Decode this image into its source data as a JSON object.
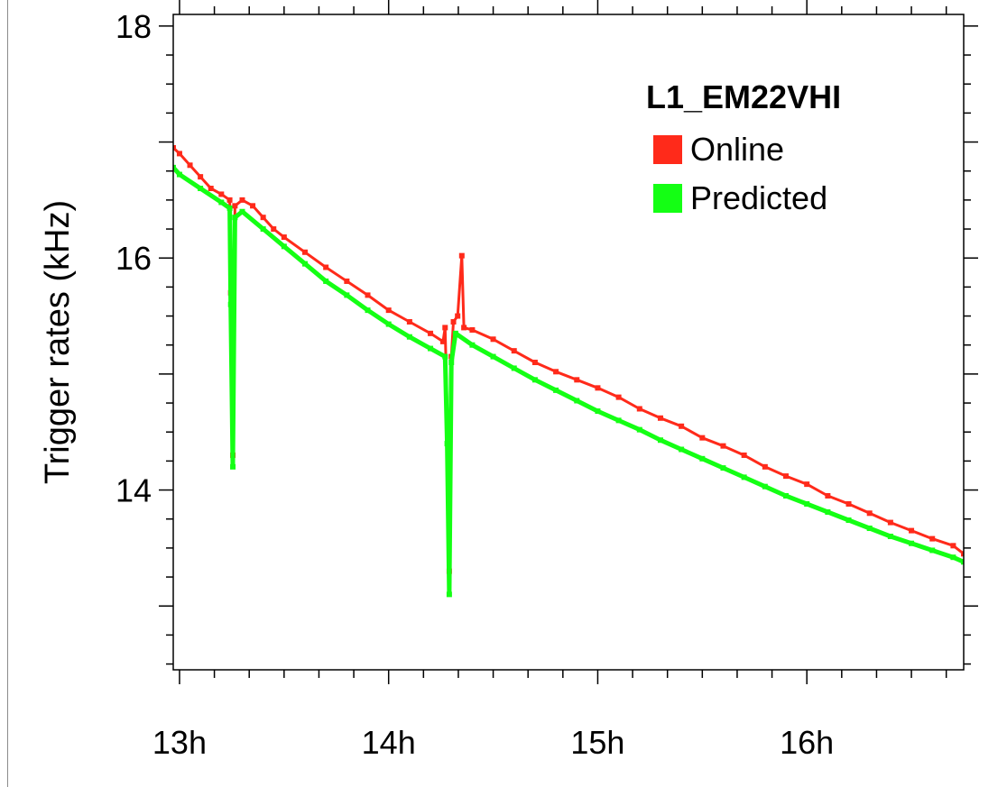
{
  "chart_data": {
    "type": "line",
    "title": "",
    "xlabel": "",
    "ylabel": "Trigger rates (kHz)",
    "xlim": [
      12.97,
      16.75
    ],
    "ylim": [
      12.45,
      18.1
    ],
    "x_ticks": [
      {
        "value": 13,
        "label": "13h"
      },
      {
        "value": 14,
        "label": "14h"
      },
      {
        "value": 15,
        "label": "15h"
      },
      {
        "value": 16,
        "label": "16h"
      }
    ],
    "y_ticks": [
      {
        "value": 14,
        "label": "14"
      },
      {
        "value": 16,
        "label": "16"
      },
      {
        "value": 18,
        "label": "18"
      }
    ],
    "grid": false,
    "legend": {
      "title": "L1_EM22VHI",
      "position": "top-right",
      "entries": [
        {
          "name": "Online",
          "color": "#ff2a1a"
        },
        {
          "name": "Predicted",
          "color": "#14ff14"
        }
      ]
    },
    "series": [
      {
        "name": "Online",
        "color": "#ff2a1a",
        "points": [
          [
            12.97,
            16.95
          ],
          [
            13.0,
            16.9
          ],
          [
            13.05,
            16.8
          ],
          [
            13.1,
            16.7
          ],
          [
            13.15,
            16.6
          ],
          [
            13.2,
            16.55
          ],
          [
            13.24,
            16.5
          ],
          [
            13.245,
            15.7
          ],
          [
            13.255,
            14.3
          ],
          [
            13.265,
            16.45
          ],
          [
            13.3,
            16.5
          ],
          [
            13.35,
            16.45
          ],
          [
            13.4,
            16.35
          ],
          [
            13.45,
            16.25
          ],
          [
            13.5,
            16.18
          ],
          [
            13.6,
            16.05
          ],
          [
            13.7,
            15.92
          ],
          [
            13.8,
            15.8
          ],
          [
            13.9,
            15.68
          ],
          [
            14.0,
            15.55
          ],
          [
            14.1,
            15.45
          ],
          [
            14.2,
            15.35
          ],
          [
            14.26,
            15.28
          ],
          [
            14.27,
            15.4
          ],
          [
            14.285,
            14.3
          ],
          [
            14.29,
            13.3
          ],
          [
            14.3,
            15.15
          ],
          [
            14.31,
            15.45
          ],
          [
            14.33,
            15.5
          ],
          [
            14.35,
            16.02
          ],
          [
            14.36,
            15.4
          ],
          [
            14.4,
            15.38
          ],
          [
            14.5,
            15.3
          ],
          [
            14.6,
            15.2
          ],
          [
            14.7,
            15.1
          ],
          [
            14.8,
            15.02
          ],
          [
            14.9,
            14.95
          ],
          [
            15.0,
            14.88
          ],
          [
            15.1,
            14.8
          ],
          [
            15.2,
            14.7
          ],
          [
            15.3,
            14.62
          ],
          [
            15.4,
            14.55
          ],
          [
            15.5,
            14.45
          ],
          [
            15.6,
            14.38
          ],
          [
            15.7,
            14.3
          ],
          [
            15.8,
            14.2
          ],
          [
            15.9,
            14.12
          ],
          [
            16.0,
            14.05
          ],
          [
            16.1,
            13.95
          ],
          [
            16.2,
            13.88
          ],
          [
            16.3,
            13.8
          ],
          [
            16.4,
            13.72
          ],
          [
            16.5,
            13.65
          ],
          [
            16.6,
            13.58
          ],
          [
            16.7,
            13.52
          ],
          [
            16.75,
            13.45
          ]
        ]
      },
      {
        "name": "Predicted",
        "color": "#14ff14",
        "points": [
          [
            12.97,
            16.78
          ],
          [
            13.0,
            16.72
          ],
          [
            13.1,
            16.6
          ],
          [
            13.2,
            16.48
          ],
          [
            13.24,
            16.43
          ],
          [
            13.245,
            15.6
          ],
          [
            13.255,
            14.2
          ],
          [
            13.265,
            16.35
          ],
          [
            13.3,
            16.4
          ],
          [
            13.4,
            16.25
          ],
          [
            13.5,
            16.1
          ],
          [
            13.6,
            15.95
          ],
          [
            13.7,
            15.8
          ],
          [
            13.8,
            15.68
          ],
          [
            13.9,
            15.55
          ],
          [
            14.0,
            15.43
          ],
          [
            14.1,
            15.32
          ],
          [
            14.2,
            15.22
          ],
          [
            14.27,
            15.15
          ],
          [
            14.28,
            14.4
          ],
          [
            14.29,
            13.1
          ],
          [
            14.3,
            15.1
          ],
          [
            14.32,
            15.35
          ],
          [
            14.4,
            15.25
          ],
          [
            14.5,
            15.15
          ],
          [
            14.6,
            15.05
          ],
          [
            14.7,
            14.95
          ],
          [
            14.8,
            14.86
          ],
          [
            14.9,
            14.77
          ],
          [
            15.0,
            14.68
          ],
          [
            15.1,
            14.6
          ],
          [
            15.2,
            14.52
          ],
          [
            15.3,
            14.43
          ],
          [
            15.4,
            14.35
          ],
          [
            15.5,
            14.27
          ],
          [
            15.6,
            14.19
          ],
          [
            15.7,
            14.11
          ],
          [
            15.8,
            14.03
          ],
          [
            15.9,
            13.95
          ],
          [
            16.0,
            13.88
          ],
          [
            16.1,
            13.81
          ],
          [
            16.2,
            13.74
          ],
          [
            16.3,
            13.67
          ],
          [
            16.4,
            13.6
          ],
          [
            16.5,
            13.54
          ],
          [
            16.6,
            13.48
          ],
          [
            16.7,
            13.42
          ],
          [
            16.75,
            13.38
          ]
        ]
      }
    ]
  }
}
